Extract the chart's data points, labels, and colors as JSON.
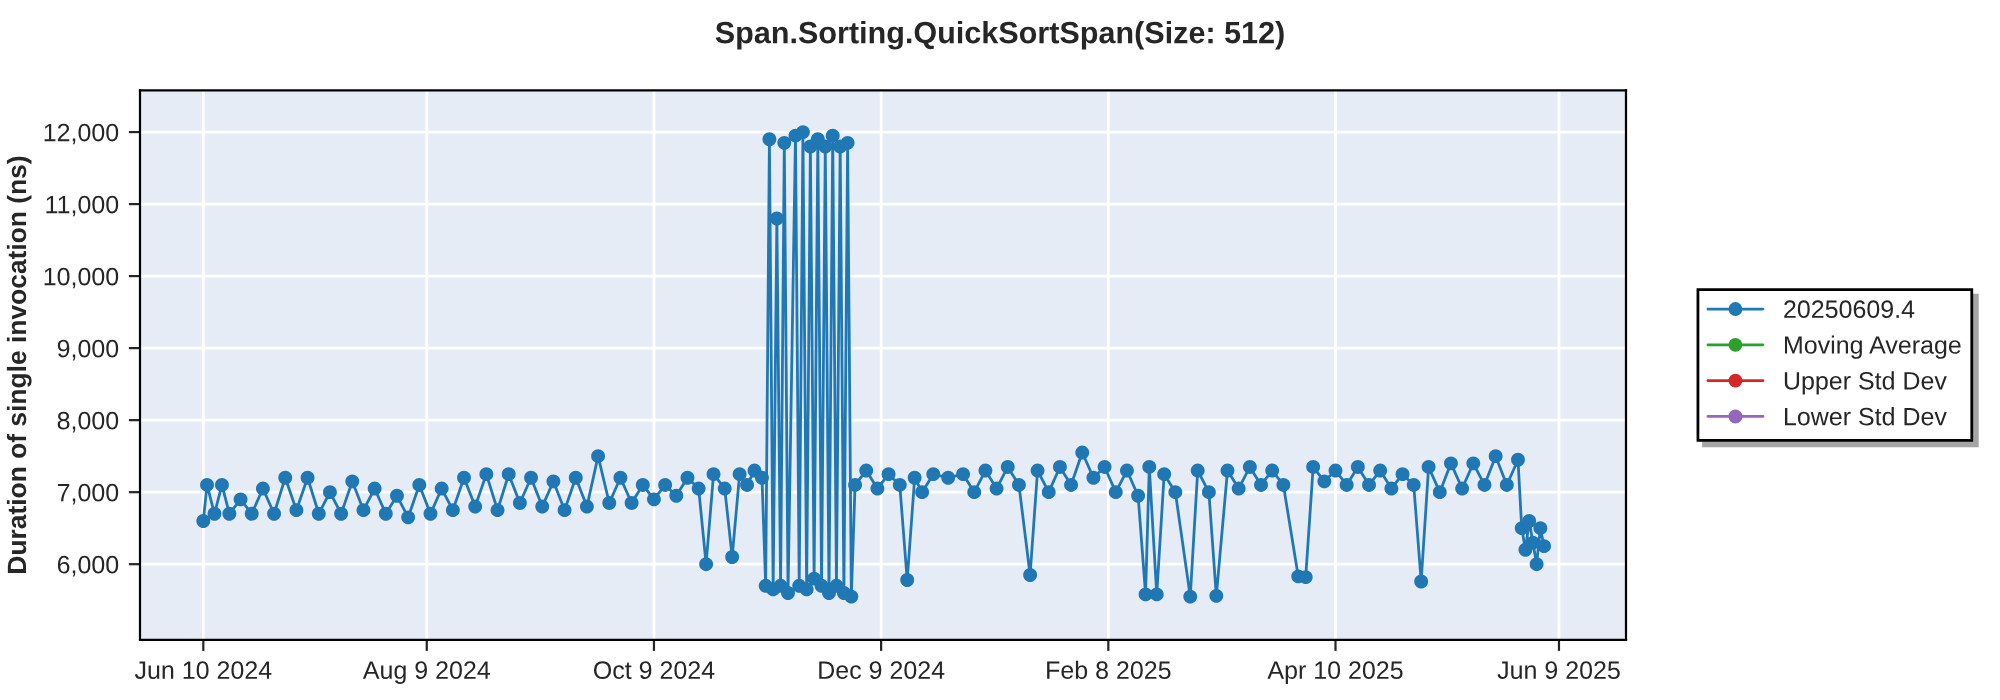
{
  "chart_data": {
    "type": "line",
    "title": "Span.Sorting.QuickSortSpan(Size: 512)",
    "ylabel": "Duration of single invocation (ns)",
    "x": [
      "2024-06-10",
      "2024-06-11",
      "2024-06-13",
      "2024-06-15",
      "2024-06-17",
      "2024-06-20",
      "2024-06-23",
      "2024-06-26",
      "2024-06-29",
      "2024-07-02",
      "2024-07-05",
      "2024-07-08",
      "2024-07-11",
      "2024-07-14",
      "2024-07-17",
      "2024-07-20",
      "2024-07-23",
      "2024-07-26",
      "2024-07-29",
      "2024-08-01",
      "2024-08-04",
      "2024-08-07",
      "2024-08-10",
      "2024-08-13",
      "2024-08-16",
      "2024-08-19",
      "2024-08-22",
      "2024-08-25",
      "2024-08-28",
      "2024-08-31",
      "2024-09-03",
      "2024-09-06",
      "2024-09-09",
      "2024-09-12",
      "2024-09-15",
      "2024-09-18",
      "2024-09-21",
      "2024-09-24",
      "2024-09-27",
      "2024-09-30",
      "2024-10-03",
      "2024-10-06",
      "2024-10-09",
      "2024-10-12",
      "2024-10-15",
      "2024-10-18",
      "2024-10-21",
      "2024-10-23",
      "2024-10-25",
      "2024-10-28",
      "2024-10-30",
      "2024-11-01",
      "2024-11-03",
      "2024-11-05",
      "2024-11-07",
      "2024-11-08",
      "2024-11-09",
      "2024-11-10",
      "2024-11-11",
      "2024-11-12",
      "2024-11-13",
      "2024-11-14",
      "2024-11-16",
      "2024-11-17",
      "2024-11-18",
      "2024-11-19",
      "2024-11-20",
      "2024-11-21",
      "2024-11-22",
      "2024-11-23",
      "2024-11-24",
      "2024-11-25",
      "2024-11-26",
      "2024-11-27",
      "2024-11-28",
      "2024-11-29",
      "2024-11-30",
      "2024-12-01",
      "2024-12-02",
      "2024-12-05",
      "2024-12-08",
      "2024-12-11",
      "2024-12-14",
      "2024-12-16",
      "2024-12-18",
      "2024-12-20",
      "2024-12-23",
      "2024-12-27",
      "2024-12-31",
      "2025-01-03",
      "2025-01-06",
      "2025-01-09",
      "2025-01-12",
      "2025-01-15",
      "2025-01-18",
      "2025-01-20",
      "2025-01-23",
      "2025-01-26",
      "2025-01-29",
      "2025-02-01",
      "2025-02-04",
      "2025-02-07",
      "2025-02-10",
      "2025-02-13",
      "2025-02-16",
      "2025-02-18",
      "2025-02-19",
      "2025-02-21",
      "2025-02-23",
      "2025-02-26",
      "2025-03-02",
      "2025-03-04",
      "2025-03-07",
      "2025-03-09",
      "2025-03-12",
      "2025-03-15",
      "2025-03-18",
      "2025-03-21",
      "2025-03-24",
      "2025-03-27",
      "2025-03-31",
      "2025-04-02",
      "2025-04-04",
      "2025-04-07",
      "2025-04-10",
      "2025-04-13",
      "2025-04-16",
      "2025-04-19",
      "2025-04-22",
      "2025-04-25",
      "2025-04-28",
      "2025-05-01",
      "2025-05-03",
      "2025-05-05",
      "2025-05-08",
      "2025-05-11",
      "2025-05-14",
      "2025-05-17",
      "2025-05-20",
      "2025-05-23",
      "2025-05-26",
      "2025-05-29",
      "2025-05-30",
      "2025-05-31",
      "2025-06-01",
      "2025-06-02",
      "2025-06-03",
      "2025-06-04",
      "2025-06-05"
    ],
    "series": [
      {
        "name": "20250609.4",
        "color": "#1f77b4",
        "values": [
          6600,
          7100,
          6700,
          7100,
          6700,
          6900,
          6700,
          7050,
          6700,
          7200,
          6750,
          7200,
          6700,
          7000,
          6700,
          7150,
          6750,
          7050,
          6700,
          6950,
          6650,
          7100,
          6700,
          7050,
          6750,
          7200,
          6800,
          7250,
          6750,
          7250,
          6850,
          7200,
          6800,
          7150,
          6750,
          7200,
          6800,
          7500,
          6850,
          7200,
          6850,
          7100,
          6900,
          7100,
          6950,
          7200,
          7050,
          6000,
          7250,
          7050,
          6100,
          7250,
          7100,
          7300,
          7200,
          5700,
          11900,
          5650,
          10800,
          5700,
          11850,
          5600,
          11950,
          5700,
          12000,
          5650,
          11800,
          5800,
          11900,
          5700,
          11800,
          5600,
          11950,
          5700,
          11800,
          5600,
          11850,
          5550,
          7100,
          7300,
          7050,
          7250,
          7100,
          5780,
          7200,
          7000,
          7250,
          7200,
          7250,
          7000,
          7300,
          7050,
          7350,
          7100,
          5850,
          7300,
          7000,
          7350,
          7100,
          7550,
          7200,
          7350,
          7000,
          7300,
          6950,
          5580,
          7350,
          5580,
          7250,
          7000,
          5550,
          7300,
          7000,
          5560,
          7300,
          7050,
          7350,
          7100,
          7300,
          7100,
          5830,
          5820,
          7350,
          7150,
          7300,
          7100,
          7350,
          7100,
          7300,
          7050,
          7250,
          7100,
          5760,
          7350,
          7000,
          7400,
          7050,
          7400,
          7100,
          7500,
          7100,
          7450,
          6500,
          6200,
          6600,
          6300,
          6000,
          6500,
          6250
        ]
      },
      {
        "name": "Moving Average",
        "color": "#2ca02c",
        "values": [
          null,
          null,
          null,
          null,
          null,
          null,
          null,
          null,
          null,
          null,
          null,
          null,
          null,
          null,
          null,
          null,
          null,
          null,
          null,
          null,
          null,
          null,
          null,
          null,
          null,
          null,
          null,
          null,
          null,
          null,
          null,
          null,
          null,
          null,
          null,
          null,
          null,
          null,
          null,
          null,
          null,
          null,
          null,
          null,
          null,
          null,
          null,
          null,
          null,
          null,
          null,
          null,
          null,
          null,
          null,
          null,
          null,
          null,
          null,
          null,
          null,
          null,
          null,
          null,
          null,
          null,
          null,
          null,
          null,
          null,
          null,
          null,
          null,
          null,
          null,
          null,
          null,
          null,
          null,
          null,
          null,
          null,
          null,
          null,
          null,
          null,
          null,
          null,
          null,
          null,
          null,
          null,
          null,
          null,
          null,
          null,
          null,
          null,
          null,
          null,
          null,
          null,
          null,
          null,
          null,
          null,
          null,
          null,
          null,
          null,
          null,
          null,
          null,
          null,
          null,
          null,
          null,
          null,
          null,
          null,
          null,
          null,
          null,
          null,
          null,
          null,
          null,
          null,
          null,
          null,
          null,
          null,
          null,
          null,
          null,
          null,
          null,
          null,
          null,
          null,
          null,
          null,
          null,
          null,
          null,
          null,
          null,
          null,
          null
        ]
      },
      {
        "name": "Upper Std Dev",
        "color": "#d62728",
        "values": [
          null,
          null,
          null,
          null,
          null,
          null,
          null,
          null,
          null,
          null,
          null,
          null,
          null,
          null,
          null,
          null,
          null,
          null,
          null,
          null,
          null,
          null,
          null,
          null,
          null,
          null,
          null,
          null,
          null,
          null,
          null,
          null,
          null,
          null,
          null,
          null,
          null,
          null,
          null,
          null,
          null,
          null,
          null,
          null,
          null,
          null,
          null,
          null,
          null,
          null,
          null,
          null,
          null,
          null,
          null,
          null,
          null,
          null,
          null,
          null,
          null,
          null,
          null,
          null,
          null,
          null,
          null,
          null,
          null,
          null,
          null,
          null,
          null,
          null,
          null,
          null,
          null,
          null,
          null,
          null,
          null,
          null,
          null,
          null,
          null,
          null,
          null,
          null,
          null,
          null,
          null,
          null,
          null,
          null,
          null,
          null,
          null,
          null,
          null,
          null,
          null,
          null,
          null,
          null,
          null,
          null,
          null,
          null,
          null,
          null,
          null,
          null,
          null,
          null,
          null,
          null,
          null,
          null,
          null,
          null,
          null,
          null,
          null,
          null,
          null,
          null,
          null,
          null,
          null,
          null,
          null,
          null,
          null,
          null,
          null,
          null,
          null,
          null,
          null,
          null,
          null,
          null,
          null,
          null,
          null,
          null,
          null,
          null,
          null
        ]
      },
      {
        "name": "Lower Std Dev",
        "color": "#9467bd",
        "values": [
          null,
          null,
          null,
          null,
          null,
          null,
          null,
          null,
          null,
          null,
          null,
          null,
          null,
          null,
          null,
          null,
          null,
          null,
          null,
          null,
          null,
          null,
          null,
          null,
          null,
          null,
          null,
          null,
          null,
          null,
          null,
          null,
          null,
          null,
          null,
          null,
          null,
          null,
          null,
          null,
          null,
          null,
          null,
          null,
          null,
          null,
          null,
          null,
          null,
          null,
          null,
          null,
          null,
          null,
          null,
          null,
          null,
          null,
          null,
          null,
          null,
          null,
          null,
          null,
          null,
          null,
          null,
          null,
          null,
          null,
          null,
          null,
          null,
          null,
          null,
          null,
          null,
          null,
          null,
          null,
          null,
          null,
          null,
          null,
          null,
          null,
          null,
          null,
          null,
          null,
          null,
          null,
          null,
          null,
          null,
          null,
          null,
          null,
          null,
          null,
          null,
          null,
          null,
          null,
          null,
          null,
          null,
          null,
          null,
          null,
          null,
          null,
          null,
          null,
          null,
          null,
          null,
          null,
          null,
          null,
          null,
          null,
          null,
          null,
          null,
          null,
          null,
          null,
          null,
          null,
          null,
          null,
          null,
          null,
          null,
          null,
          null,
          null,
          null,
          null,
          null,
          null,
          null,
          null,
          null,
          null,
          null,
          null,
          null
        ]
      }
    ],
    "xlim": [
      "2024-05-24",
      "2025-06-27"
    ],
    "xticks": [
      {
        "value": "2024-06-10",
        "label": "Jun 10 2024"
      },
      {
        "value": "2024-08-09",
        "label": "Aug 9 2024"
      },
      {
        "value": "2024-10-09",
        "label": "Oct 9 2024"
      },
      {
        "value": "2024-12-09",
        "label": "Dec 9 2024"
      },
      {
        "value": "2025-02-08",
        "label": "Feb 8 2025"
      },
      {
        "value": "2025-04-10",
        "label": "Apr 10 2025"
      },
      {
        "value": "2025-06-09",
        "label": "Jun 9 2025"
      }
    ],
    "ylim": [
      4950,
      12580
    ],
    "yticks": [
      {
        "value": 6000,
        "label": "6,000"
      },
      {
        "value": 7000,
        "label": "7,000"
      },
      {
        "value": 8000,
        "label": "8,000"
      },
      {
        "value": 9000,
        "label": "9,000"
      },
      {
        "value": 10000,
        "label": "10,000"
      },
      {
        "value": 11000,
        "label": "11,000"
      },
      {
        "value": 12000,
        "label": "12,000"
      }
    ],
    "grid": true,
    "legend": "right",
    "marker": "circle",
    "line_style": "solid"
  }
}
